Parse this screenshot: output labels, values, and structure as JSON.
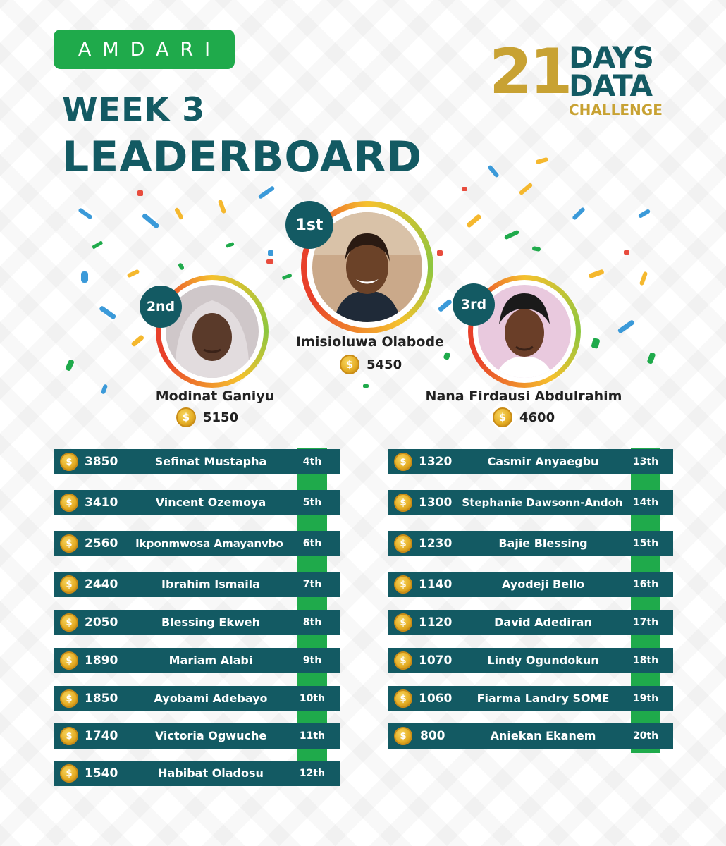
{
  "brand": {
    "logo_text": "AMDARI"
  },
  "heading": {
    "line1": "WEEK 3",
    "line2": "LEADERBOARD"
  },
  "challenge": {
    "number": "21",
    "line1": "DAYS",
    "line2": "DATA",
    "line3": "CHALLENGE"
  },
  "colors": {
    "teal": "#135a63",
    "green": "#1faa4b",
    "gold": "#c8a233",
    "coin": "#e4ac23"
  },
  "coin_symbol": "$",
  "podium": [
    {
      "rank": "1st",
      "name": "Imisioluwa Olabode",
      "score": "5450"
    },
    {
      "rank": "2nd",
      "name": "Modinat Ganiyu",
      "score": "5150"
    },
    {
      "rank": "3rd",
      "name": "Nana Firdausi Abdulrahim",
      "score": "4600"
    }
  ],
  "left_table": [
    {
      "score": "3850",
      "name": "Sefinat Mustapha",
      "rank": "4th"
    },
    {
      "score": "3410",
      "name": "Vincent Ozemoya",
      "rank": "5th"
    },
    {
      "score": "2560",
      "name": "Ikponmwosa Amayanvbo",
      "rank": "6th"
    },
    {
      "score": "2440",
      "name": "Ibrahim Ismaila",
      "rank": "7th"
    },
    {
      "score": "2050",
      "name": "Blessing Ekweh",
      "rank": "8th"
    },
    {
      "score": "1890",
      "name": "Mariam Alabi",
      "rank": "9th"
    },
    {
      "score": "1850",
      "name": "Ayobami Adebayo",
      "rank": "10th"
    },
    {
      "score": "1740",
      "name": "Victoria Ogwuche",
      "rank": "11th"
    },
    {
      "score": "1540",
      "name": "Habibat Oladosu",
      "rank": "12th"
    }
  ],
  "right_table": [
    {
      "score": "1320",
      "name": "Casmir Anyaegbu",
      "rank": "13th"
    },
    {
      "score": "1300",
      "name": "Stephanie Dawsonn-Andoh",
      "rank": "14th"
    },
    {
      "score": "1230",
      "name": "Bajie Blessing",
      "rank": "15th"
    },
    {
      "score": "1140",
      "name": "Ayodeji Bello",
      "rank": "16th"
    },
    {
      "score": "1120",
      "name": "David Adediran",
      "rank": "17th"
    },
    {
      "score": "1070",
      "name": "Lindy Ogundokun",
      "rank": "18th"
    },
    {
      "score": "1060",
      "name": "Fiarma Landry SOME",
      "rank": "19th"
    },
    {
      "score": "800",
      "name": "Aniekan Ekanem",
      "rank": "20th"
    }
  ]
}
